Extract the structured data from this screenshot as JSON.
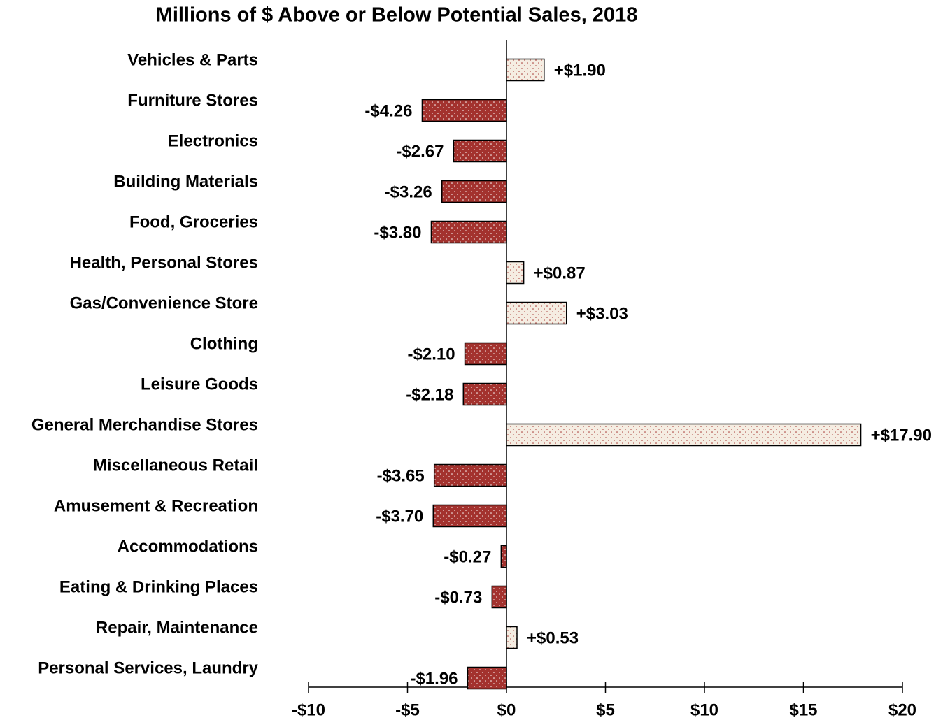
{
  "chart_data": {
    "type": "bar",
    "orientation": "horizontal",
    "title": "Millions of $ Above or Below Potential Sales, 2018",
    "categories": [
      "Vehicles & Parts",
      "Furniture Stores",
      "Electronics",
      "Building Materials",
      "Food, Groceries",
      "Health, Personal Stores",
      "Gas/Convenience Store",
      "Clothing",
      "Leisure Goods",
      "General Merchandise Stores",
      "Miscellaneous Retail",
      "Amusement & Recreation",
      "Accommodations",
      "Eating & Drinking Places",
      "Repair, Maintenance",
      "Personal Services, Laundry"
    ],
    "values": [
      1.9,
      -4.26,
      -2.67,
      -3.26,
      -3.8,
      0.87,
      3.03,
      -2.1,
      -2.18,
      17.9,
      -3.65,
      -3.7,
      -0.27,
      -0.73,
      0.53,
      -1.96
    ],
    "value_labels": [
      "+$1.90",
      "-$4.26",
      "-$2.67",
      "-$3.26",
      "-$3.80",
      "+$0.87",
      "+$3.03",
      "-$2.10",
      "-$2.18",
      "+$17.90",
      "-$3.65",
      "-$3.70",
      "-$0.27",
      "-$0.73",
      "+$0.53",
      "-$1.96"
    ],
    "positive_color": "#f5ede2",
    "negative_color": "#a3322e",
    "xlim": [
      -10,
      20
    ],
    "xticks": [
      {
        "value": -10,
        "label": "-$10"
      },
      {
        "value": -5,
        "label": "-$5"
      },
      {
        "value": 0,
        "label": "$0"
      },
      {
        "value": 5,
        "label": "$5"
      },
      {
        "value": 10,
        "label": "$10"
      },
      {
        "value": 15,
        "label": "$15"
      },
      {
        "value": 20,
        "label": "$20"
      }
    ],
    "grid": false
  }
}
